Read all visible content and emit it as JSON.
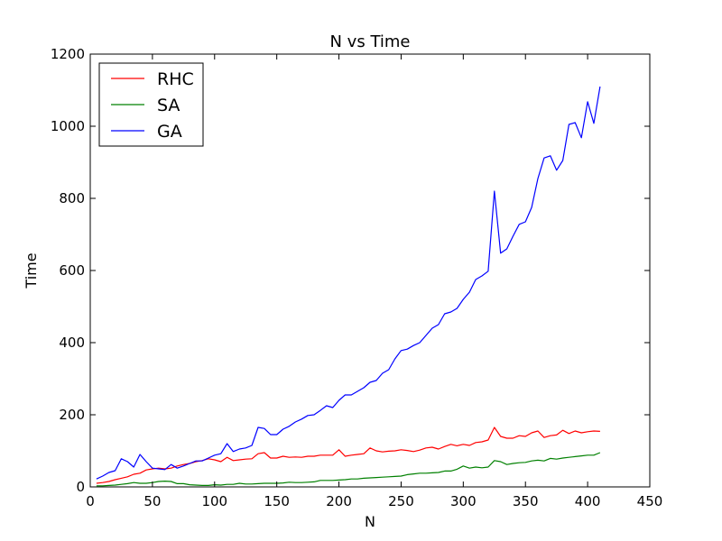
{
  "chart_data": {
    "type": "line",
    "title": "N vs Time",
    "xlabel": "N",
    "ylabel": "Time",
    "xlim": [
      0,
      450
    ],
    "ylim": [
      0,
      1200
    ],
    "xticks": [
      0,
      50,
      100,
      150,
      200,
      250,
      300,
      350,
      400,
      450
    ],
    "yticks": [
      0,
      200,
      400,
      600,
      800,
      1000,
      1200
    ],
    "grid": false,
    "legend_position": "top-left",
    "series": [
      {
        "name": "RHC",
        "color": "#ff0000",
        "x": [
          5,
          10,
          15,
          20,
          25,
          30,
          35,
          40,
          45,
          50,
          55,
          60,
          65,
          70,
          75,
          80,
          85,
          90,
          95,
          100,
          105,
          110,
          115,
          120,
          125,
          130,
          135,
          140,
          145,
          150,
          155,
          160,
          165,
          170,
          175,
          180,
          185,
          190,
          195,
          200,
          205,
          210,
          215,
          220,
          225,
          230,
          235,
          240,
          245,
          250,
          255,
          260,
          265,
          270,
          275,
          280,
          285,
          290,
          295,
          300,
          305,
          310,
          315,
          320,
          325,
          330,
          335,
          340,
          345,
          350,
          355,
          360,
          365,
          370,
          375,
          380,
          385,
          390,
          395,
          400,
          405,
          410
        ],
        "y": [
          10,
          12,
          15,
          20,
          24,
          28,
          35,
          38,
          47,
          50,
          52,
          50,
          52,
          58,
          62,
          65,
          70,
          73,
          78,
          75,
          70,
          82,
          73,
          75,
          77,
          78,
          92,
          95,
          80,
          80,
          85,
          82,
          83,
          82,
          85,
          85,
          88,
          88,
          88,
          103,
          85,
          88,
          90,
          92,
          108,
          100,
          97,
          99,
          100,
          103,
          101,
          98,
          102,
          108,
          110,
          105,
          112,
          118,
          114,
          118,
          115,
          123,
          125,
          130,
          165,
          140,
          135,
          135,
          142,
          140,
          150,
          155,
          137,
          142,
          144,
          157,
          148,
          155,
          150,
          153,
          155,
          154
        ]
      },
      {
        "name": "SA",
        "color": "#008000",
        "x": [
          5,
          10,
          15,
          20,
          25,
          30,
          35,
          40,
          45,
          50,
          55,
          60,
          65,
          70,
          75,
          80,
          85,
          90,
          95,
          100,
          105,
          110,
          115,
          120,
          125,
          130,
          135,
          140,
          145,
          150,
          155,
          160,
          165,
          170,
          175,
          180,
          185,
          190,
          195,
          200,
          205,
          210,
          215,
          220,
          225,
          230,
          235,
          240,
          245,
          250,
          255,
          260,
          265,
          270,
          275,
          280,
          285,
          290,
          295,
          300,
          305,
          310,
          315,
          320,
          325,
          330,
          335,
          340,
          345,
          350,
          355,
          360,
          365,
          370,
          375,
          380,
          385,
          390,
          395,
          400,
          405,
          410
        ],
        "y": [
          3,
          3,
          4,
          5,
          7,
          9,
          12,
          10,
          10,
          12,
          15,
          16,
          15,
          9,
          9,
          6,
          5,
          4,
          4,
          6,
          5,
          7,
          7,
          10,
          8,
          8,
          9,
          10,
          10,
          10,
          11,
          13,
          12,
          12,
          13,
          14,
          18,
          18,
          18,
          19,
          20,
          22,
          22,
          24,
          25,
          26,
          27,
          28,
          29,
          30,
          34,
          36,
          38,
          38,
          39,
          40,
          44,
          44,
          49,
          58,
          52,
          55,
          53,
          55,
          73,
          70,
          62,
          65,
          67,
          68,
          72,
          74,
          72,
          79,
          77,
          80,
          82,
          84,
          86,
          88,
          88,
          95
        ]
      },
      {
        "name": "GA",
        "color": "#0000ff",
        "x": [
          5,
          10,
          15,
          20,
          25,
          30,
          35,
          40,
          45,
          50,
          55,
          60,
          65,
          70,
          75,
          80,
          85,
          90,
          95,
          100,
          105,
          110,
          115,
          120,
          125,
          130,
          135,
          140,
          145,
          150,
          155,
          160,
          165,
          170,
          175,
          180,
          185,
          190,
          195,
          200,
          205,
          210,
          215,
          220,
          225,
          230,
          235,
          240,
          245,
          250,
          255,
          260,
          265,
          270,
          275,
          280,
          285,
          290,
          295,
          300,
          305,
          310,
          315,
          320,
          325,
          330,
          335,
          340,
          345,
          350,
          355,
          360,
          365,
          370,
          375,
          380,
          385,
          390,
          395,
          400,
          405,
          410
        ],
        "y": [
          22,
          30,
          40,
          45,
          78,
          70,
          55,
          90,
          70,
          52,
          50,
          48,
          62,
          52,
          58,
          65,
          72,
          72,
          80,
          88,
          92,
          120,
          98,
          105,
          108,
          115,
          165,
          162,
          145,
          145,
          160,
          168,
          180,
          188,
          198,
          200,
          212,
          225,
          220,
          240,
          255,
          255,
          265,
          275,
          290,
          295,
          315,
          325,
          355,
          378,
          382,
          392,
          400,
          420,
          440,
          450,
          480,
          485,
          495,
          520,
          540,
          575,
          585,
          598,
          820,
          648,
          660,
          695,
          728,
          735,
          775,
          855,
          912,
          918,
          878,
          905,
          1005,
          1010,
          968,
          1068,
          1008,
          1110
        ]
      }
    ]
  }
}
